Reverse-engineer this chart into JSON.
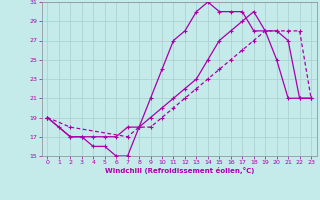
{
  "xlabel": "Windchill (Refroidissement éolien,°C)",
  "bg_color": "#c5eaea",
  "line_color": "#aa00aa",
  "grid_color": "#aacccc",
  "xlim": [
    -0.5,
    23.5
  ],
  "ylim": [
    15,
    31
  ],
  "xticks": [
    0,
    1,
    2,
    3,
    4,
    5,
    6,
    7,
    8,
    9,
    10,
    11,
    12,
    13,
    14,
    15,
    16,
    17,
    18,
    19,
    20,
    21,
    22,
    23
  ],
  "yticks": [
    15,
    17,
    19,
    21,
    23,
    25,
    27,
    29,
    31
  ],
  "curve1_x": [
    0,
    1,
    2,
    3,
    4,
    5,
    6,
    7,
    8,
    9,
    10,
    11,
    12,
    13,
    14,
    15,
    16,
    17,
    18,
    19,
    20,
    21,
    22,
    23
  ],
  "curve1_y": [
    19,
    18,
    17,
    17,
    16,
    16,
    15,
    15,
    18,
    21,
    24,
    27,
    28,
    30,
    31,
    30,
    30,
    30,
    28,
    28,
    25,
    21,
    21,
    21
  ],
  "curve2_x": [
    0,
    2,
    3,
    4,
    5,
    6,
    7,
    8,
    9,
    10,
    11,
    12,
    13,
    14,
    15,
    16,
    17,
    18,
    19,
    20,
    21,
    22,
    23
  ],
  "curve2_y": [
    19,
    17,
    17,
    17,
    17,
    17,
    18,
    18,
    19,
    20,
    21,
    22,
    23,
    25,
    27,
    28,
    29,
    30,
    28,
    28,
    27,
    21,
    21
  ],
  "curve3_x": [
    0,
    2,
    7,
    8,
    9,
    10,
    11,
    12,
    13,
    14,
    15,
    16,
    17,
    18,
    19,
    20,
    21,
    22,
    23
  ],
  "curve3_y": [
    19,
    18,
    17,
    18,
    18,
    19,
    20,
    21,
    22,
    23,
    24,
    25,
    26,
    27,
    28,
    28,
    28,
    28,
    21
  ]
}
